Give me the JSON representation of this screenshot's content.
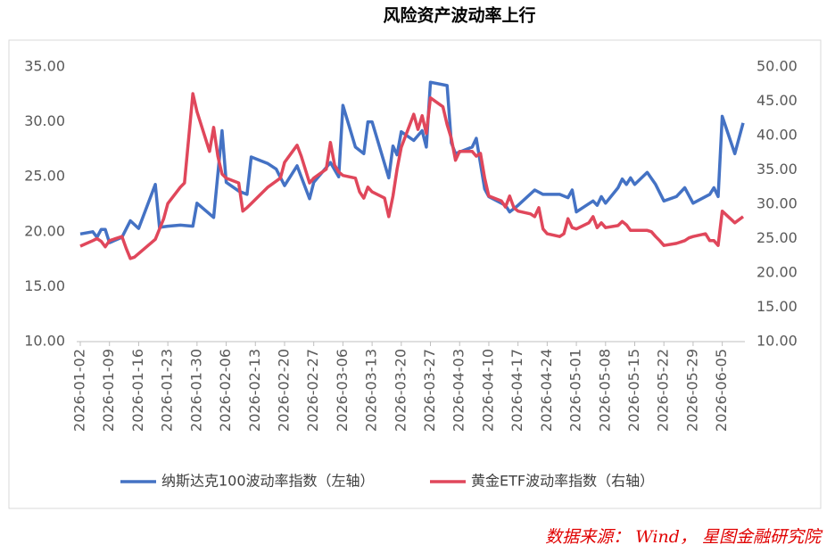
{
  "chart_data": {
    "type": "line",
    "title": "风险资产波动率上行",
    "source": "数据来源： Wind， 星图金融研究院",
    "xlim": [
      "2026-01-02",
      "2026-06-10"
    ],
    "xticks": [
      "2026-01-02",
      "2026-01-09",
      "2026-01-16",
      "2026-01-23",
      "2026-01-30",
      "2026-02-06",
      "2026-02-13",
      "2026-02-20",
      "2026-02-27",
      "2026-03-06",
      "2026-03-13",
      "2026-03-20",
      "2026-03-27",
      "2026-04-03",
      "2026-04-10",
      "2026-04-17",
      "2026-04-24",
      "2026-05-01",
      "2026-05-08",
      "2026-05-15",
      "2026-05-22",
      "2026-05-29",
      "2026-06-05"
    ],
    "ylim": [
      10,
      35
    ],
    "yticks": [
      {
        "value": 10,
        "label": "10.00"
      },
      {
        "value": 15,
        "label": "15.00"
      },
      {
        "value": 20,
        "label": "20.00"
      },
      {
        "value": 25,
        "label": "25.00"
      },
      {
        "value": 30,
        "label": "30.00"
      },
      {
        "value": 35,
        "label": "35.00"
      }
    ],
    "y2lim": [
      10,
      50
    ],
    "y2ticks": [
      {
        "value": 10,
        "label": "10.00"
      },
      {
        "value": 15,
        "label": "15.00"
      },
      {
        "value": 20,
        "label": "20.00"
      },
      {
        "value": 25,
        "label": "25.00"
      },
      {
        "value": 30,
        "label": "30.00"
      },
      {
        "value": 35,
        "label": "35.00"
      },
      {
        "value": 40,
        "label": "40.00"
      },
      {
        "value": 45,
        "label": "45.00"
      },
      {
        "value": 50,
        "label": "50.00"
      }
    ],
    "legend": "bottom",
    "series": [
      {
        "name": "纳斯达克100波动率指数（左轴）",
        "color": "#4472c4",
        "axis": "y",
        "x": [
          "2026-01-02",
          "2026-01-05",
          "2026-01-06",
          "2026-01-07",
          "2026-01-08",
          "2026-01-09",
          "2026-01-12",
          "2026-01-14",
          "2026-01-16",
          "2026-01-20",
          "2026-01-21",
          "2026-01-23",
          "2026-01-26",
          "2026-01-29",
          "2026-01-30",
          "2026-02-03",
          "2026-02-05",
          "2026-02-06",
          "2026-02-09",
          "2026-02-11",
          "2026-02-12",
          "2026-02-16",
          "2026-02-18",
          "2026-02-20",
          "2026-02-23",
          "2026-02-26",
          "2026-02-27",
          "2026-03-03",
          "2026-03-05",
          "2026-03-06",
          "2026-03-09",
          "2026-03-11",
          "2026-03-12",
          "2026-03-13",
          "2026-03-17",
          "2026-03-18",
          "2026-03-19",
          "2026-03-20",
          "2026-03-23",
          "2026-03-25",
          "2026-03-26",
          "2026-03-27",
          "2026-03-31",
          "2026-04-01",
          "2026-04-02",
          "2026-04-06",
          "2026-04-07",
          "2026-04-09",
          "2026-04-10",
          "2026-04-14",
          "2026-04-15",
          "2026-04-17",
          "2026-04-21",
          "2026-04-23",
          "2026-04-27",
          "2026-04-29",
          "2026-04-30",
          "2026-05-01",
          "2026-05-05",
          "2026-05-06",
          "2026-05-07",
          "2026-05-08",
          "2026-05-11",
          "2026-05-12",
          "2026-05-13",
          "2026-05-14",
          "2026-05-15",
          "2026-05-18",
          "2026-05-20",
          "2026-05-22",
          "2026-05-25",
          "2026-05-27",
          "2026-05-29",
          "2026-06-02",
          "2026-06-03",
          "2026-06-04",
          "2026-06-05",
          "2026-06-08",
          "2026-06-10"
        ],
        "values": [
          19.8,
          20.0,
          19.5,
          20.2,
          20.2,
          19.0,
          19.5,
          21.0,
          20.3,
          24.3,
          20.4,
          20.5,
          20.6,
          20.5,
          22.6,
          21.3,
          29.2,
          24.5,
          23.7,
          23.4,
          26.8,
          26.2,
          25.7,
          24.2,
          26.0,
          23.0,
          24.5,
          26.3,
          25.0,
          31.5,
          27.7,
          27.1,
          30.0,
          30.0,
          24.9,
          27.8,
          27.0,
          29.1,
          28.3,
          29.2,
          27.7,
          33.6,
          33.3,
          28.1,
          27.1,
          27.7,
          28.5,
          23.9,
          23.2,
          22.4,
          21.8,
          22.4,
          23.8,
          23.4,
          23.4,
          23.1,
          23.8,
          21.8,
          22.8,
          22.4,
          23.2,
          22.6,
          24.0,
          24.8,
          24.3,
          24.9,
          24.3,
          25.4,
          24.3,
          22.8,
          23.2,
          24.0,
          22.6,
          23.4,
          24.0,
          23.2,
          30.5,
          27.1,
          29.9
        ]
      },
      {
        "name": "黄金ETF波动率指数（右轴）",
        "color": "#e0475b",
        "axis": "y2",
        "x": [
          "2026-01-02",
          "2026-01-05",
          "2026-01-06",
          "2026-01-07",
          "2026-01-08",
          "2026-01-09",
          "2026-01-12",
          "2026-01-13",
          "2026-01-14",
          "2026-01-15",
          "2026-01-20",
          "2026-01-22",
          "2026-01-23",
          "2026-01-26",
          "2026-01-27",
          "2026-01-29",
          "2026-01-30",
          "2026-02-02",
          "2026-02-03",
          "2026-02-04",
          "2026-02-05",
          "2026-02-06",
          "2026-02-09",
          "2026-02-10",
          "2026-02-11",
          "2026-02-12",
          "2026-02-16",
          "2026-02-19",
          "2026-02-20",
          "2026-02-23",
          "2026-02-24",
          "2026-02-26",
          "2026-02-27",
          "2026-03-02",
          "2026-03-03",
          "2026-03-04",
          "2026-03-05",
          "2026-03-06",
          "2026-03-09",
          "2026-03-10",
          "2026-03-11",
          "2026-03-12",
          "2026-03-13",
          "2026-03-16",
          "2026-03-17",
          "2026-03-18",
          "2026-03-19",
          "2026-03-20",
          "2026-03-23",
          "2026-03-24",
          "2026-03-25",
          "2026-03-26",
          "2026-03-27",
          "2026-03-30",
          "2026-03-31",
          "2026-04-01",
          "2026-04-02",
          "2026-04-03",
          "2026-04-06",
          "2026-04-07",
          "2026-04-08",
          "2026-04-09",
          "2026-04-10",
          "2026-04-13",
          "2026-04-14",
          "2026-04-15",
          "2026-04-16",
          "2026-04-17",
          "2026-04-20",
          "2026-04-21",
          "2026-04-22",
          "2026-04-23",
          "2026-04-24",
          "2026-04-27",
          "2026-04-28",
          "2026-04-29",
          "2026-04-30",
          "2026-05-01",
          "2026-05-04",
          "2026-05-05",
          "2026-05-06",
          "2026-05-07",
          "2026-05-08",
          "2026-05-11",
          "2026-05-12",
          "2026-05-13",
          "2026-05-14",
          "2026-05-15",
          "2026-05-18",
          "2026-05-19",
          "2026-05-20",
          "2026-05-21",
          "2026-05-22",
          "2026-05-25",
          "2026-05-27",
          "2026-05-28",
          "2026-05-29",
          "2026-06-01",
          "2026-06-02",
          "2026-06-03",
          "2026-06-04",
          "2026-06-05",
          "2026-06-08",
          "2026-06-10"
        ],
        "values": [
          23.9,
          24.7,
          25.0,
          24.6,
          23.8,
          24.7,
          25.3,
          23.6,
          22.1,
          22.3,
          24.9,
          27.9,
          30.1,
          32.5,
          33.1,
          46.1,
          43.5,
          37.7,
          41.2,
          37.0,
          34.4,
          33.8,
          33.1,
          29.0,
          29.5,
          30.1,
          32.5,
          33.8,
          36.1,
          38.6,
          37.0,
          33.1,
          33.8,
          35.1,
          39.0,
          35.7,
          34.7,
          34.2,
          33.8,
          31.8,
          30.9,
          32.5,
          31.8,
          30.9,
          28.2,
          31.2,
          35.1,
          38.3,
          43.1,
          40.9,
          42.9,
          40.3,
          45.5,
          44.2,
          41.6,
          39.6,
          36.4,
          37.7,
          37.7,
          37.0,
          37.4,
          33.8,
          31.2,
          30.5,
          29.6,
          31.2,
          29.5,
          29.0,
          28.6,
          28.2,
          29.5,
          26.4,
          25.7,
          25.3,
          25.7,
          27.9,
          26.6,
          26.4,
          27.3,
          28.2,
          26.6,
          27.3,
          26.6,
          26.9,
          27.5,
          27.0,
          26.2,
          26.2,
          26.2,
          26.0,
          25.3,
          24.7,
          24.0,
          24.3,
          24.7,
          25.1,
          25.3,
          25.7,
          24.7,
          24.7,
          24.0,
          29.0,
          27.3,
          28.2
        ]
      }
    ]
  }
}
